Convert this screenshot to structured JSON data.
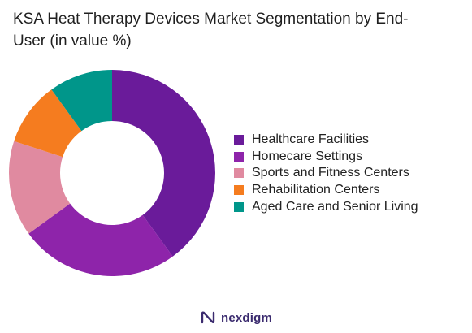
{
  "chart_data": {
    "type": "pie",
    "title": "KSA Heat Therapy Devices Market Segmentation by End-User (in value %)",
    "categories": [
      "Healthcare Facilities",
      "Homecare Settings",
      "Sports and Fitness Centers",
      "Rehabilitation Centers",
      "Aged Care and Senior Living"
    ],
    "values": [
      40,
      25,
      15,
      10,
      10
    ],
    "colors": [
      "#6a1b9a",
      "#8e24aa",
      "#e08aa0",
      "#f57c1f",
      "#00968a"
    ],
    "legend_position": "right",
    "donut": true
  },
  "brand": {
    "name": "nexdigm",
    "color": "#3a2a6e"
  }
}
